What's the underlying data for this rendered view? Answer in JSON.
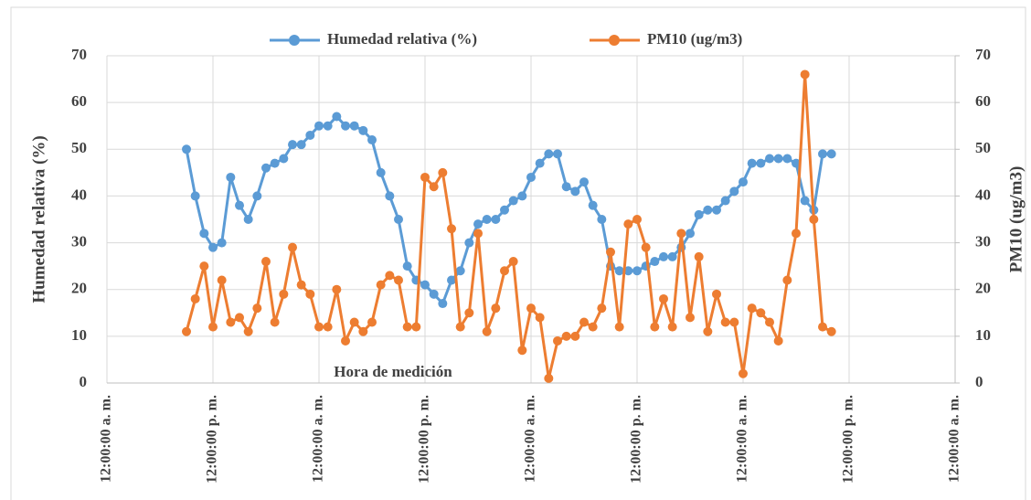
{
  "chart_data": {
    "type": "line",
    "x_label": "Hora de medición",
    "y_label": "Humedad relativa (%)",
    "y2_label": "PM10 (ug/m3)",
    "x": [
      9,
      10,
      11,
      12,
      13,
      14,
      15,
      16,
      17,
      18,
      19,
      20,
      21,
      22,
      23,
      24,
      25,
      26,
      27,
      28,
      29,
      30,
      31,
      32,
      33,
      34,
      35,
      36,
      37,
      38,
      39,
      40,
      41,
      42,
      43,
      44,
      45,
      46,
      47,
      48,
      49,
      50,
      51,
      52,
      53,
      54,
      55,
      56,
      57,
      58,
      59,
      60,
      61,
      62,
      63,
      64,
      65,
      66,
      67,
      68,
      69,
      70,
      71,
      72,
      73,
      74,
      75,
      76,
      77,
      78,
      79,
      80,
      81,
      82
    ],
    "xlim": [
      0,
      96
    ],
    "xticks": [
      {
        "value": 0,
        "label": "12:00:00 a. m."
      },
      {
        "value": 12,
        "label": "12:00:00 p. m."
      },
      {
        "value": 24,
        "label": "12:00:00 a. m."
      },
      {
        "value": 36,
        "label": "12:00:00 p. m."
      },
      {
        "value": 48,
        "label": "12:00:00 a. m."
      },
      {
        "value": 60,
        "label": "12:00:00 p. m."
      },
      {
        "value": 72,
        "label": "12:00:00 a. m."
      },
      {
        "value": 84,
        "label": "12:00:00 p. m."
      },
      {
        "value": 96,
        "label": "12:00:00 a. m."
      }
    ],
    "ylim": [
      0,
      70
    ],
    "yticks": [
      0,
      10,
      20,
      30,
      40,
      50,
      60,
      70
    ],
    "y2lim": [
      0,
      70
    ],
    "y2ticks": [
      0,
      10,
      20,
      30,
      40,
      50,
      60,
      70
    ],
    "grid": true,
    "legend": "top",
    "series": [
      {
        "name": "Humedad relativa (%)",
        "color": "#5b9bd5",
        "axis": "y",
        "values": [
          50,
          40,
          32,
          29,
          30,
          44,
          38,
          35,
          40,
          46,
          47,
          48,
          51,
          51,
          53,
          55,
          55,
          57,
          55,
          55,
          54,
          52,
          45,
          40,
          35,
          25,
          22,
          21,
          19,
          17,
          22,
          24,
          30,
          34,
          35,
          35,
          37,
          39,
          40,
          44,
          47,
          49,
          49,
          42,
          41,
          43,
          38,
          35,
          25,
          24,
          24,
          24,
          25,
          26,
          27,
          27,
          29,
          32,
          36,
          37,
          37,
          39,
          41,
          43,
          47,
          47,
          48,
          48,
          48,
          47,
          39,
          37,
          49,
          49
        ]
      },
      {
        "name": "PM10 (ug/m3)",
        "color": "#ed7d31",
        "axis": "y2",
        "values": [
          11,
          18,
          25,
          12,
          22,
          13,
          14,
          11,
          16,
          26,
          13,
          19,
          29,
          21,
          19,
          12,
          12,
          20,
          9,
          13,
          11,
          13,
          21,
          23,
          22,
          12,
          12,
          44,
          42,
          45,
          33,
          12,
          15,
          32,
          11,
          16,
          24,
          26,
          7,
          16,
          14,
          1,
          9,
          10,
          10,
          13,
          12,
          16,
          28,
          12,
          34,
          35,
          29,
          12,
          18,
          12,
          32,
          14,
          27,
          11,
          19,
          13,
          13,
          2,
          16,
          15,
          13,
          9,
          22,
          32,
          66,
          35,
          12,
          11
        ]
      }
    ]
  }
}
